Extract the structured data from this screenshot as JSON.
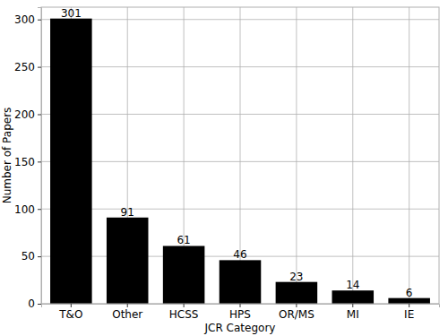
{
  "chart_data": {
    "type": "bar",
    "x_label": "JCR Category",
    "y_label": "Number of Papers",
    "categories": [
      "T&O",
      "Other",
      "HCSS",
      "HPS",
      "OR/MS",
      "MI",
      "IE"
    ],
    "values": [
      301,
      91,
      61,
      46,
      23,
      14,
      6
    ],
    "color": "#000000",
    "ylim": [
      0,
      313
    ],
    "yticks": [
      0,
      50,
      100,
      150,
      200,
      250,
      300
    ],
    "grid": true,
    "data_labels": true
  }
}
